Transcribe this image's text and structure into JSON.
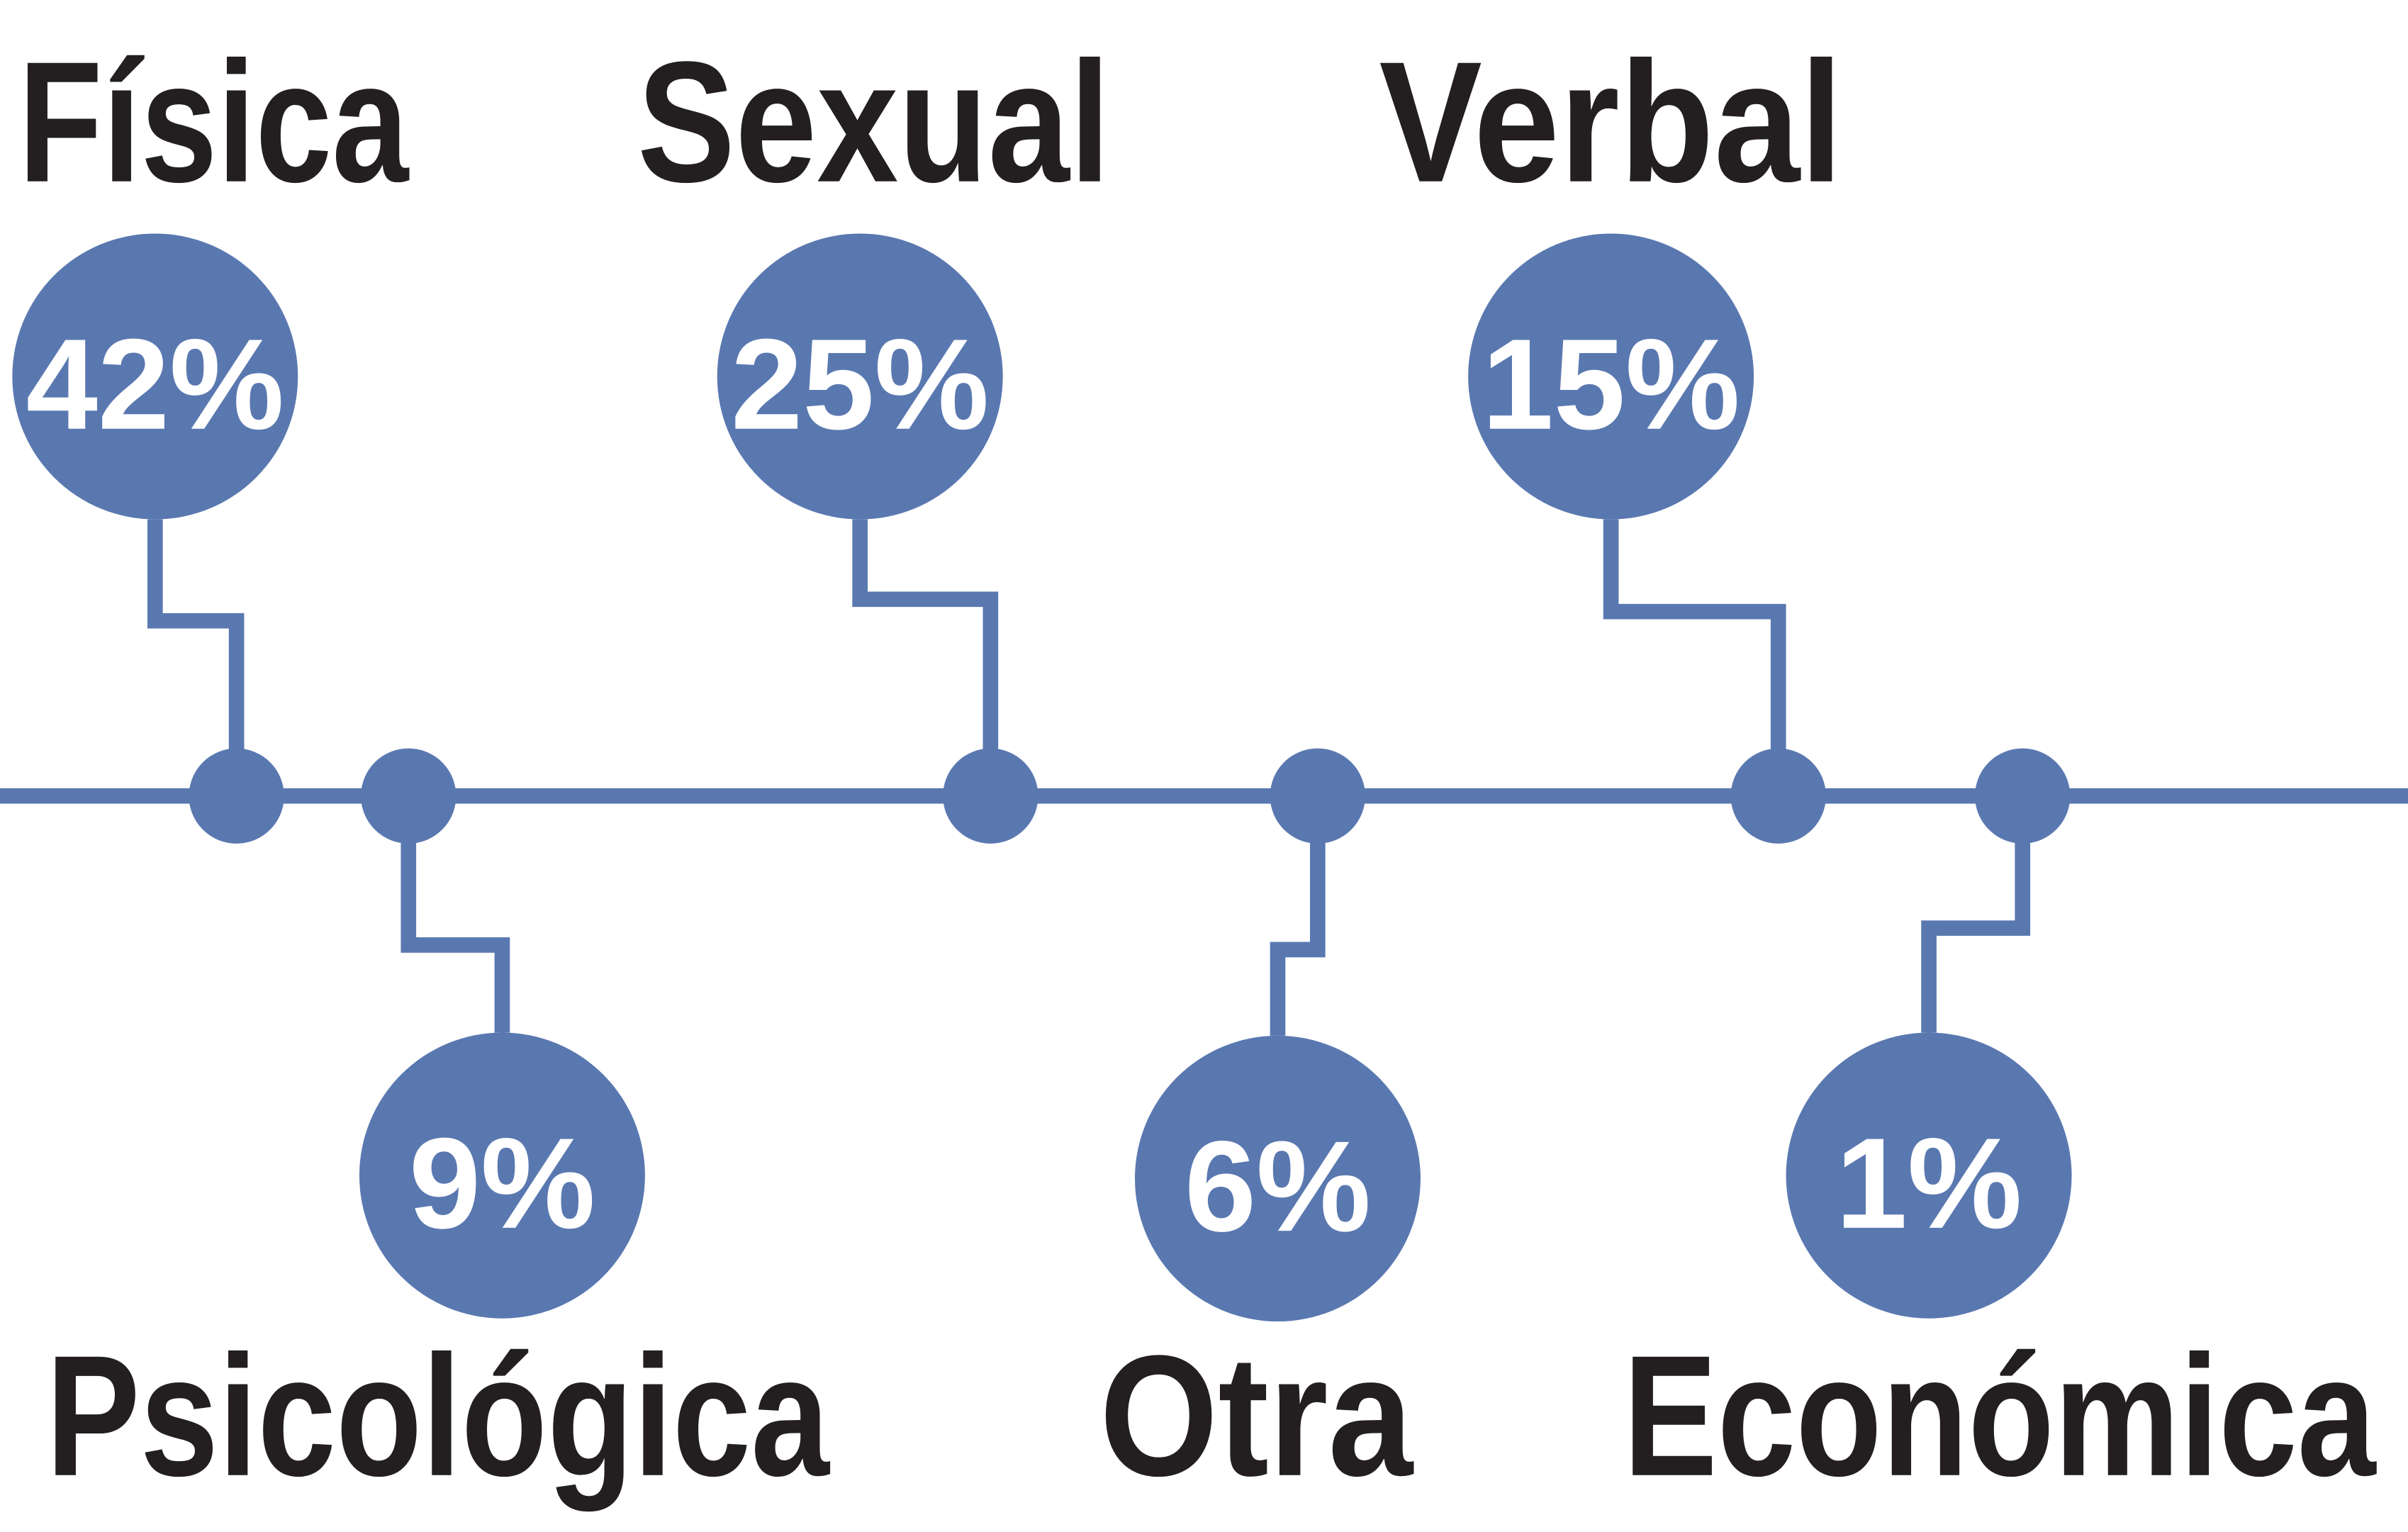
{
  "chart_data": {
    "type": "timeline",
    "categories": [
      "Física",
      "Psicológica",
      "Sexual",
      "Otra",
      "Verbal",
      "Económica"
    ],
    "values": [
      42,
      9,
      25,
      6,
      15,
      1
    ],
    "value_labels": [
      "42%",
      "9%",
      "25%",
      "6%",
      "15%",
      "1%"
    ],
    "color": "#5a78b0"
  }
}
